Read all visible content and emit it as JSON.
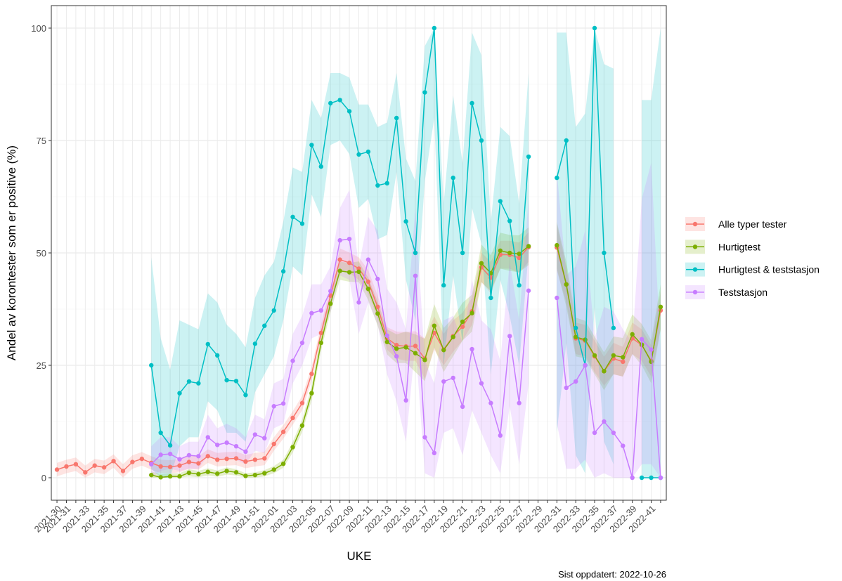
{
  "chart_data": {
    "type": "line",
    "y_label": "Andel av korontester som er positive (%)",
    "x_label": "UKE",
    "caption": "Sist oppdatert: 2022-10-26",
    "legend": "right",
    "grid": true,
    "categories": [
      "2021-30",
      "2021-31",
      null,
      "2021-33",
      null,
      "2021-35",
      null,
      "2021-37",
      null,
      "2021-39",
      null,
      "2021-41",
      null,
      "2021-43",
      null,
      "2021-45",
      null,
      "2021-47",
      null,
      "2021-49",
      null,
      "2021-51",
      null,
      "2022-01",
      null,
      "2022-03",
      null,
      "2022-05",
      null,
      "2022-07",
      null,
      "2022-09",
      null,
      "2022-11",
      null,
      "2022-13",
      null,
      "2022-15",
      null,
      "2022-17",
      null,
      "2022-19",
      null,
      "2022-21",
      null,
      "2022-23",
      null,
      "2022-25",
      null,
      "2022-27",
      null,
      "2022-29",
      null,
      "2022-31",
      null,
      "2022-33",
      null,
      "2022-35",
      null,
      "2022-37",
      null,
      "2022-39",
      null,
      "2022-41",
      null
    ],
    "ylim": [
      -5,
      105
    ],
    "yticks": [
      0,
      25,
      50,
      75,
      100
    ],
    "series": [
      {
        "name": "Alle typer tester",
        "color": "#F8766D",
        "values": [
          1.8,
          2.5,
          3,
          1.2,
          2.7,
          2.3,
          3.7,
          1.5,
          3.5,
          4.2,
          3.3,
          2.5,
          2.4,
          2.7,
          3.5,
          3.2,
          4.8,
          4,
          4.2,
          4.3,
          3.6,
          4,
          4.3,
          7.5,
          10.2,
          13.3,
          16.6,
          23.1,
          32.2,
          40.5,
          48.5,
          47.8,
          46.5,
          43.6,
          38,
          31,
          29.5,
          29.2,
          29.3,
          26.5,
          32.2,
          28.5,
          31.5,
          33.6,
          37,
          46.8,
          44.5,
          49.6,
          49.6,
          48.9,
          51.3,
          null,
          null,
          51.2,
          43,
          31,
          30.5,
          27,
          23.7,
          26.5,
          25.8,
          31,
          29.5,
          26,
          37.2
        ],
        "lower": [
          0.3,
          1,
          1.5,
          0,
          1.2,
          0.8,
          2.2,
          0,
          2,
          2.7,
          1.8,
          1,
          1,
          1.2,
          2,
          1.8,
          3.3,
          2.5,
          2.7,
          2.8,
          2.1,
          2.5,
          2.8,
          6,
          8.7,
          11.8,
          15,
          21.5,
          30.5,
          38.5,
          46,
          45.5,
          44,
          41,
          35.5,
          28.5,
          26.5,
          26,
          26,
          22,
          28.5,
          25,
          28,
          30.5,
          34,
          43.5,
          41,
          46.5,
          46.5,
          45.5,
          48,
          null,
          null,
          46,
          39,
          27.5,
          27,
          23.5,
          20.5,
          23,
          22.5,
          27.5,
          26,
          22.5,
          33
        ],
        "upper": [
          3.3,
          4,
          4.5,
          2.7,
          4.2,
          3.8,
          5.2,
          3,
          5,
          5.7,
          4.8,
          4,
          3.9,
          4.2,
          5,
          4.7,
          6.3,
          5.5,
          5.7,
          5.8,
          5.1,
          5.5,
          5.8,
          9,
          11.7,
          14.8,
          18.2,
          24.7,
          34,
          42.5,
          51,
          50.1,
          49,
          46.2,
          40.5,
          33.5,
          32.5,
          32.4,
          32.6,
          31,
          35.9,
          32,
          35,
          36.7,
          40,
          50.1,
          48,
          52.7,
          52.7,
          52.3,
          54.6,
          null,
          null,
          56.4,
          47,
          34.5,
          34,
          30.5,
          26.9,
          30,
          29.1,
          34.5,
          33,
          29.5,
          41.4
        ]
      },
      {
        "name": "Hurtigtest",
        "color": "#7CAE00",
        "values": [
          null,
          null,
          null,
          null,
          null,
          null,
          null,
          null,
          null,
          null,
          0.6,
          0.1,
          0.3,
          0.3,
          1.1,
          0.8,
          1.3,
          0.9,
          1.5,
          1.2,
          0.4,
          0.6,
          1,
          1.8,
          3.1,
          6.8,
          11.6,
          18.8,
          30,
          38.7,
          46,
          45.7,
          45.8,
          42,
          36.5,
          30.2,
          28.7,
          29,
          27.7,
          26.2,
          33.8,
          28.4,
          31.3,
          34.7,
          36.6,
          47.7,
          45.5,
          50.5,
          50,
          49.8,
          51.5,
          null,
          null,
          51.7,
          43,
          31.3,
          30.7,
          27.2,
          23.7,
          27.2,
          26.8,
          31.9,
          29.6,
          25.8,
          38
        ],
        "lower": [
          null,
          null,
          null,
          null,
          null,
          null,
          null,
          null,
          null,
          null,
          0,
          0,
          0,
          0,
          0.3,
          0.1,
          0.5,
          0.2,
          0.7,
          0.5,
          0,
          0,
          0.3,
          1,
          2.2,
          5.6,
          10.2,
          17.2,
          28.3,
          36.8,
          44,
          43.6,
          43.5,
          39.5,
          33.8,
          27.4,
          25.5,
          25.5,
          23.5,
          21.5,
          29,
          23.5,
          27,
          30.5,
          32.5,
          43.5,
          41.5,
          46.5,
          46,
          45.7,
          47.3,
          null,
          null,
          46.5,
          38,
          27,
          26.5,
          23,
          19.5,
          23,
          22.5,
          27.5,
          25,
          21,
          33
        ],
        "upper": [
          null,
          null,
          null,
          null,
          null,
          null,
          null,
          null,
          null,
          null,
          1.4,
          0.8,
          1,
          1,
          1.9,
          1.5,
          2.1,
          1.6,
          2.3,
          1.9,
          1,
          1.2,
          1.7,
          2.6,
          4,
          8,
          13,
          20.4,
          31.7,
          40.6,
          48,
          47.8,
          48.1,
          44.5,
          39.2,
          33,
          31.9,
          32.5,
          31.9,
          30.9,
          38.6,
          33.3,
          35.6,
          38.9,
          40.7,
          51.9,
          49.5,
          54.5,
          54,
          53.9,
          55.7,
          null,
          null,
          56.9,
          48,
          35.6,
          34.9,
          31.4,
          27.9,
          31.4,
          31.1,
          36.3,
          34.2,
          30.6,
          43
        ]
      },
      {
        "name": "Hurtigtest & teststasjon",
        "color": "#00BFC4",
        "values": [
          null,
          null,
          null,
          null,
          null,
          null,
          null,
          null,
          null,
          null,
          25,
          10,
          7.2,
          18.8,
          21.4,
          21,
          29.7,
          27.2,
          21.7,
          21.5,
          18.4,
          29.8,
          33.8,
          37.2,
          45.9,
          58,
          56.5,
          74,
          69.2,
          83.3,
          84,
          81.5,
          71.9,
          72.5,
          65,
          65.5,
          80,
          57,
          50,
          85.7,
          100,
          42.8,
          66.7,
          50,
          83.3,
          75,
          40,
          61.5,
          57.1,
          42.8,
          71.4,
          null,
          null,
          66.7,
          75,
          33.3,
          25,
          100,
          50,
          33.3,
          null,
          null,
          0,
          0,
          0
        ],
        "lower": [
          null,
          null,
          null,
          null,
          null,
          null,
          null,
          null,
          null,
          null,
          2,
          0,
          0,
          7,
          9,
          9,
          17,
          15,
          10,
          10,
          8,
          19,
          23,
          27,
          35,
          47,
          45,
          63,
          58,
          74,
          75,
          72,
          60,
          62,
          53,
          54,
          68,
          44,
          35,
          66,
          80,
          25,
          45,
          30,
          60,
          52,
          23,
          44,
          36,
          25,
          50,
          null,
          null,
          10,
          30,
          5,
          1,
          38,
          8,
          3,
          null,
          null,
          0,
          0,
          0
        ],
        "upper": [
          null,
          null,
          null,
          null,
          null,
          null,
          null,
          null,
          null,
          null,
          49,
          31,
          24,
          35,
          34,
          33,
          41,
          39,
          34,
          32,
          29,
          40,
          45,
          48,
          57,
          69,
          68,
          84,
          80,
          90,
          90,
          89,
          83,
          83,
          78,
          79,
          90,
          71,
          66,
          96,
          100,
          61,
          85,
          70,
          99,
          94,
          57,
          78,
          76,
          61,
          90,
          null,
          null,
          99,
          99,
          78,
          81,
          100,
          92,
          91,
          null,
          null,
          84,
          84,
          100
        ]
      },
      {
        "name": "Teststasjon",
        "color": "#C77CFF",
        "values": [
          null,
          null,
          null,
          null,
          null,
          null,
          null,
          null,
          null,
          null,
          3,
          5.1,
          5.3,
          4.1,
          5,
          4.8,
          9,
          7.3,
          7.8,
          7,
          5.8,
          9.6,
          8.8,
          15.9,
          16.5,
          26,
          30,
          36.6,
          37.2,
          41.5,
          52.8,
          53.1,
          39,
          48.5,
          44.2,
          31.6,
          27,
          17.2,
          44.9,
          9,
          5.5,
          21.4,
          22.2,
          15.8,
          28.6,
          21,
          16.6,
          9.4,
          31.5,
          16.6,
          41.6,
          null,
          null,
          40,
          20,
          21.4,
          25,
          10,
          12.5,
          10,
          7.1,
          0,
          30.8,
          28.5,
          0
        ],
        "lower": [
          null,
          null,
          null,
          null,
          null,
          null,
          null,
          null,
          null,
          null,
          0,
          1.5,
          2,
          1.5,
          2,
          2,
          5,
          4,
          4.5,
          4,
          3,
          6,
          5.5,
          11,
          12,
          21,
          25,
          31,
          32,
          37,
          45,
          44,
          32,
          39,
          34,
          23,
          17,
          8,
          30,
          1,
          0,
          10,
          11,
          5,
          15,
          10,
          5,
          1,
          16,
          3,
          21,
          null,
          null,
          12,
          2,
          2,
          4,
          0,
          1,
          0,
          0,
          0,
          3,
          3,
          0
        ],
        "upper": [
          null,
          null,
          null,
          null,
          null,
          null,
          null,
          null,
          null,
          null,
          7,
          9,
          9,
          7,
          8,
          8,
          14,
          11,
          12,
          11,
          9,
          14,
          13,
          21,
          22,
          32,
          36,
          43,
          43,
          47,
          60,
          64,
          47,
          58,
          55,
          42,
          39,
          33,
          60,
          26,
          21,
          35,
          36,
          30,
          44,
          35,
          33,
          26,
          48,
          35,
          62,
          null,
          null,
          68,
          45,
          47,
          55,
          31,
          38,
          37,
          33,
          30,
          62,
          70,
          28
        ]
      }
    ]
  }
}
